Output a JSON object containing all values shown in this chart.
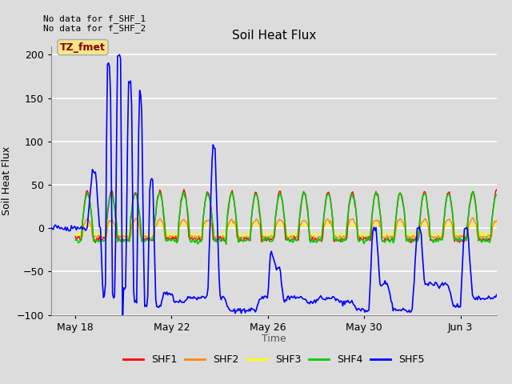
{
  "title": "Soil Heat Flux",
  "ylabel": "Soil Heat Flux",
  "xlabel": "Time",
  "ylim": [
    -100,
    210
  ],
  "yticks": [
    -100,
    -50,
    0,
    50,
    100,
    150,
    200
  ],
  "note_line1": "No data for f_SHF_1",
  "note_line2": "No data for f_SHF_2",
  "tz_label": "TZ_fmet",
  "legend_entries": [
    "SHF1",
    "SHF2",
    "SHF3",
    "SHF4",
    "SHF5"
  ],
  "legend_colors": [
    "#ff0000",
    "#ff8800",
    "#ffff00",
    "#00cc00",
    "#0000ff"
  ],
  "line_colors": {
    "SHF1": "#ff0000",
    "SHF2": "#ff8800",
    "SHF3": "#ffff00",
    "SHF4": "#00cc00",
    "SHF5": "#0000ff"
  },
  "x_tick_labels": [
    "May 18",
    "May 22",
    "May 26",
    "May 30",
    "Jun 3"
  ],
  "x_tick_positions": [
    1,
    5,
    9,
    13,
    17
  ],
  "xlim": [
    0.0,
    18.5
  ],
  "plot_bg_color": "#dcdcdc",
  "fig_bg_color": "#dcdcdc"
}
